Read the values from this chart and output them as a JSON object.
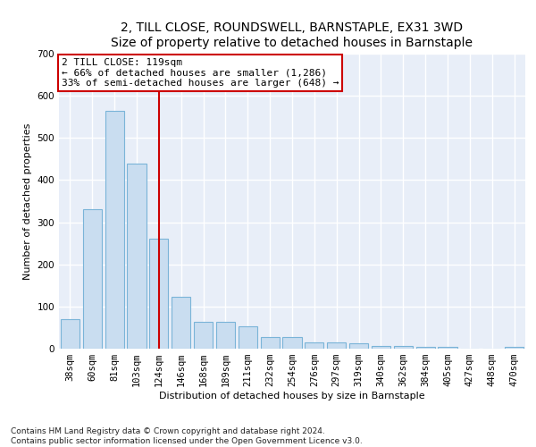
{
  "title": "2, TILL CLOSE, ROUNDSWELL, BARNSTAPLE, EX31 3WD",
  "subtitle": "Size of property relative to detached houses in Barnstaple",
  "xlabel": "Distribution of detached houses by size in Barnstaple",
  "ylabel": "Number of detached properties",
  "categories": [
    "38sqm",
    "60sqm",
    "81sqm",
    "103sqm",
    "124sqm",
    "146sqm",
    "168sqm",
    "189sqm",
    "211sqm",
    "232sqm",
    "254sqm",
    "276sqm",
    "297sqm",
    "319sqm",
    "340sqm",
    "362sqm",
    "384sqm",
    "405sqm",
    "427sqm",
    "448sqm",
    "470sqm"
  ],
  "values": [
    70,
    330,
    565,
    440,
    260,
    122,
    63,
    63,
    53,
    28,
    28,
    15,
    15,
    12,
    7,
    7,
    5,
    5,
    0,
    0,
    5
  ],
  "bar_color": "#c9ddf0",
  "bar_edge_color": "#7ab4d8",
  "vline_color": "#cc0000",
  "annotation_text": "2 TILL CLOSE: 119sqm\n← 66% of detached houses are smaller (1,286)\n33% of semi-detached houses are larger (648) →",
  "annotation_box_color": "white",
  "annotation_box_edge": "#cc0000",
  "ylim": [
    0,
    700
  ],
  "yticks": [
    0,
    100,
    200,
    300,
    400,
    500,
    600,
    700
  ],
  "footer": "Contains HM Land Registry data © Crown copyright and database right 2024.\nContains public sector information licensed under the Open Government Licence v3.0.",
  "bg_color": "#e8eef8",
  "grid_color": "#ffffff",
  "title_fontsize": 10,
  "subtitle_fontsize": 9,
  "label_fontsize": 8,
  "tick_fontsize": 7.5,
  "footer_fontsize": 6.5,
  "annot_fontsize": 8
}
